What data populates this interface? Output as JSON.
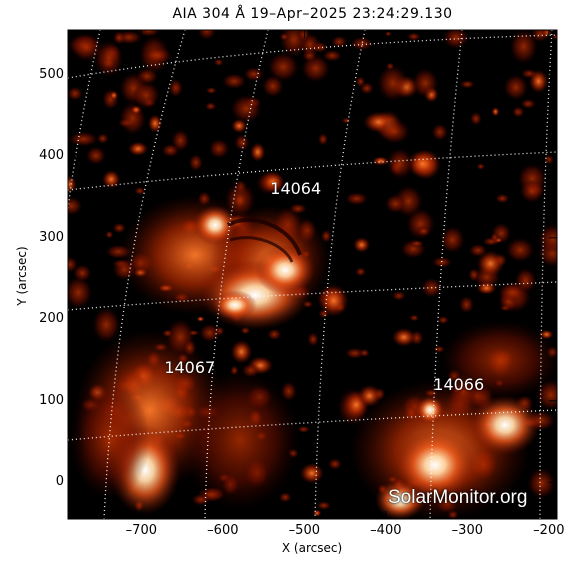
{
  "figure": {
    "title": "AIA 304 Å 19–Apr–2025 23:24:29.130",
    "xlabel": "X (arcsec)",
    "ylabel": "Y (arcsec)",
    "x_ticks": [
      "–700",
      "–600",
      "–500",
      "–400",
      "–300",
      "–200"
    ],
    "y_ticks": [
      "0",
      "100",
      "200",
      "300",
      "400",
      "500"
    ],
    "xlim": [
      -790,
      -190
    ],
    "ylim": [
      -45,
      555
    ],
    "colors": {
      "background": "#000000",
      "emission_mid": "#a11a00",
      "emission_bright": "#ffb070",
      "emission_peak": "#ffffff",
      "grid": "#ffffff"
    }
  },
  "regions": [
    {
      "label": "14064",
      "x": -505,
      "y": 360
    },
    {
      "label": "14067",
      "x": -635,
      "y": 140
    },
    {
      "label": "14066",
      "x": -305,
      "y": 120
    }
  ],
  "watermark": "SolarMonitor.org"
}
